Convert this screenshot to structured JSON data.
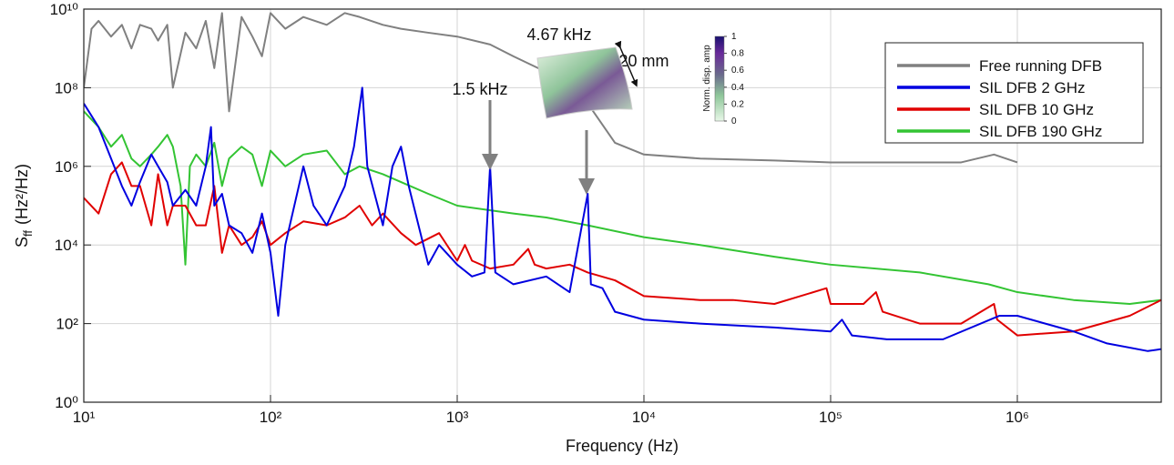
{
  "chart_data": {
    "type": "line",
    "xlabel": "Frequency (Hz)",
    "ylabel": {
      "symbol": "S",
      "subscript": "ff",
      "unit": "(Hz²/Hz)"
    },
    "xscale": "log",
    "yscale": "log",
    "grid": true,
    "legend": "upper right",
    "xlim": [
      10,
      5900000
    ],
    "ylim": [
      1,
      10000000000
    ],
    "xticks": [
      {
        "value": 10,
        "label": "10¹"
      },
      {
        "value": 100,
        "label": "10²"
      },
      {
        "value": 1000,
        "label": "10³"
      },
      {
        "value": 10000,
        "label": "10⁴"
      },
      {
        "value": 100000,
        "label": "10⁵"
      },
      {
        "value": 1000000,
        "label": "10⁶"
      }
    ],
    "yticks": [
      {
        "value": 1,
        "label": "10⁰"
      },
      {
        "value": 100,
        "label": "10²"
      },
      {
        "value": 10000,
        "label": "10⁴"
      },
      {
        "value": 1000000,
        "label": "10⁶"
      },
      {
        "value": 100000000,
        "label": "10⁸"
      },
      {
        "value": 10000000000,
        "label": "10¹⁰"
      }
    ],
    "series": [
      {
        "name": "Free running DFB",
        "color": "#808080",
        "x": [
          10,
          11,
          12,
          14,
          16,
          18,
          20,
          23,
          25,
          28,
          30,
          35,
          40,
          45,
          50,
          55,
          60,
          70,
          80,
          90,
          100,
          120,
          150,
          200,
          250,
          300,
          400,
          500,
          700,
          1000,
          1500,
          2000,
          3000,
          4000,
          5000,
          7000,
          10000,
          20000,
          50000,
          100000,
          200000,
          500000,
          750000,
          1000000
        ],
        "values": [
          100000000.0,
          3160000000.0,
          5010000000.0,
          2000000000.0,
          3980000000.0,
          1000000000.0,
          3980000000.0,
          3160000000.0,
          1580000000.0,
          3980000000.0,
          100000000.0,
          2510000000.0,
          1000000000.0,
          5010000000.0,
          316000000.0,
          7940000000.0,
          25100000.0,
          6310000000.0,
          2000000000.0,
          631000000.0,
          7940000000.0,
          3160000000.0,
          6310000000.0,
          3980000000.0,
          7940000000.0,
          6310000000.0,
          3980000000.0,
          3160000000.0,
          2510000000.0,
          2000000000.0,
          1260000000.0,
          631000000.0,
          251000000.0,
          100000000.0,
          39800000.0,
          3980000.0,
          2000000.0,
          1580000.0,
          1410000.0,
          1260000.0,
          1260000.0,
          1260000.0,
          2000000.0,
          1260000.0
        ]
      },
      {
        "name": "SIL DFB 2 GHz",
        "color": "#0000e0",
        "x": [
          10,
          12,
          14,
          16,
          18,
          20,
          23,
          25,
          28,
          30,
          35,
          40,
          45,
          48,
          50,
          55,
          60,
          70,
          80,
          90,
          100,
          110,
          120,
          150,
          170,
          200,
          250,
          280,
          310,
          330,
          400,
          450,
          500,
          550,
          700,
          800,
          1000,
          1200,
          1400,
          1500,
          1600,
          2000,
          3000,
          4000,
          5000,
          5200,
          6000,
          7000,
          10000,
          20000,
          50000,
          100000,
          115000,
          130000,
          200000,
          400000,
          800000,
          1000000,
          2000000,
          3000000,
          5000000,
          5900000
        ],
        "values": [
          39800000.0,
          10000000.0,
          1580000.0,
          316000.0,
          100000.0,
          398000.0,
          2000000.0,
          1000000.0,
          398000.0,
          100000.0,
          251000.0,
          100000.0,
          1000000.0,
          10000000.0,
          100000.0,
          200000.0,
          31600.0,
          20000.0,
          6310.0,
          63100.0,
          6310.0,
          158,
          10000.0,
          1000000.0,
          100000.0,
          31600.0,
          316000.0,
          3160000.0,
          100000000.0,
          1000000.0,
          31600.0,
          1000000.0,
          3160000.0,
          316000.0,
          3160.0,
          10000.0,
          3160.0,
          1580.0,
          2000.0,
          1000000.0,
          2000.0,
          1000.0,
          1580.0,
          631,
          200000.0,
          1000.0,
          794,
          200,
          126,
          100,
          79.4,
          63.1,
          126,
          50.1,
          39.8,
          39.8,
          158,
          158,
          63.1,
          31.6,
          20,
          22.4
        ]
      },
      {
        "name": "SIL DFB 10 GHz",
        "color": "#e00000",
        "x": [
          10,
          12,
          14,
          16,
          18,
          20,
          23,
          25,
          28,
          30,
          35,
          40,
          45,
          50,
          55,
          60,
          70,
          80,
          90,
          100,
          120,
          150,
          200,
          250,
          300,
          350,
          400,
          500,
          600,
          800,
          1000,
          1100,
          1200,
          1500,
          2000,
          2400,
          2600,
          3000,
          4000,
          5000,
          7000,
          10000,
          20000,
          30000,
          50000,
          95000,
          100000,
          150000,
          175000,
          190000,
          300000,
          500000,
          750000,
          780000,
          1000000,
          2000000,
          4000000,
          5900000
        ],
        "values": [
          158000.0,
          63100.0,
          631000.0,
          1260000.0,
          316000.0,
          316000.0,
          31600.0,
          631000.0,
          31600.0,
          100000.0,
          100000.0,
          31600.0,
          31600.0,
          316000.0,
          6310.0,
          31600.0,
          10000.0,
          15800.0,
          39800.0,
          10000.0,
          20000.0,
          39800.0,
          31600.0,
          50100.0,
          100000.0,
          31600.0,
          63100.0,
          20000.0,
          10000.0,
          20000.0,
          3980.0,
          10000.0,
          3980.0,
          2510.0,
          3160.0,
          7940.0,
          3160.0,
          2510.0,
          3160.0,
          2000.0,
          1260.0,
          501,
          398,
          398,
          316,
          794,
          316,
          316,
          631,
          200,
          100,
          100,
          316,
          126,
          50.1,
          63.1,
          158,
          398
        ]
      },
      {
        "name": "SIL DFB 190 GHz",
        "color": "#33c433",
        "x": [
          10,
          12,
          14,
          16,
          18,
          20,
          23,
          25,
          28,
          30,
          33,
          35,
          37,
          40,
          45,
          50,
          55,
          60,
          70,
          80,
          90,
          100,
          120,
          150,
          200,
          250,
          300,
          400,
          500,
          700,
          1000,
          2000,
          3000,
          5000,
          10000,
          20000,
          50000,
          100000,
          300000,
          700000,
          1000000,
          2000000,
          4000000,
          5900000
        ],
        "values": [
          25100000.0,
          10000000.0,
          3160000.0,
          6310000.0,
          1580000.0,
          1000000.0,
          2000000.0,
          3160000.0,
          6310000.0,
          3160000.0,
          316000.0,
          3160.0,
          1000000.0,
          2000000.0,
          1000000.0,
          3980000.0,
          316000.0,
          1580000.0,
          3160000.0,
          2000000.0,
          316000.0,
          2510000.0,
          1000000.0,
          2000000.0,
          2510000.0,
          631000.0,
          1000000.0,
          631000.0,
          398000.0,
          200000.0,
          100000.0,
          63100.0,
          50100.0,
          31600.0,
          15800.0,
          10000.0,
          5010.0,
          3160.0,
          2000.0,
          1000.0,
          631,
          398,
          316,
          398
        ]
      }
    ],
    "annotations": [
      {
        "text": "1.5 kHz"
      },
      {
        "text": "4.67 kHz"
      },
      {
        "text": "20 mm"
      }
    ],
    "colorbar": {
      "label": "Norm. disp. amp",
      "lim": [
        0,
        1
      ],
      "ticks": [
        0,
        0.2,
        0.4,
        0.6,
        0.8,
        1
      ]
    }
  }
}
